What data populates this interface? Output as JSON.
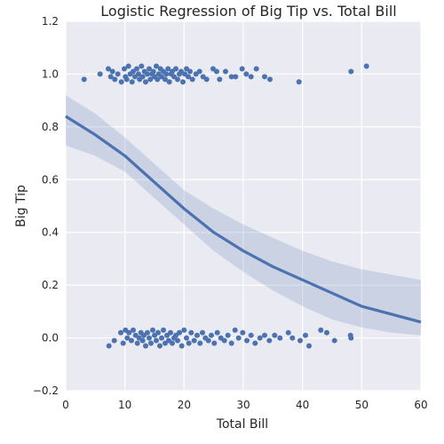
{
  "chart_data": {
    "type": "scatter",
    "title": "Logistic Regression of Big Tip vs. Total Bill",
    "xlabel": "Total Bill",
    "ylabel": "Big Tip",
    "xlim": [
      0,
      60
    ],
    "ylim": [
      -0.2,
      1.2
    ],
    "xticks": [
      0,
      10,
      20,
      30,
      40,
      50,
      60
    ],
    "yticks": [
      -0.2,
      0.0,
      0.2,
      0.4,
      0.6,
      0.8,
      1.0,
      1.2
    ],
    "ytick_labels": [
      "−0.2",
      "0.0",
      "0.2",
      "0.4",
      "0.6",
      "0.8",
      "1.0",
      "1.2"
    ],
    "grid": true,
    "background": "#eaeaf2",
    "point_color": "#4c72b0",
    "line_color": "#4c72b0",
    "band_color": "#4c72b0",
    "series": [
      {
        "kind": "points",
        "points": [
          [
            3.1,
            0.98
          ],
          [
            5.8,
            1.0
          ],
          [
            7.2,
            1.02
          ],
          [
            7.6,
            0.99
          ],
          [
            7.9,
            1.01
          ],
          [
            8.3,
            0.98
          ],
          [
            8.8,
            1.0
          ],
          [
            9.4,
            0.97
          ],
          [
            9.9,
            1.02
          ],
          [
            10.1,
            0.99
          ],
          [
            10.3,
            0.98
          ],
          [
            10.6,
            1.03
          ],
          [
            10.9,
            1.0
          ],
          [
            11.2,
            0.97
          ],
          [
            11.4,
            1.01
          ],
          [
            11.7,
            0.99
          ],
          [
            12.0,
            1.02
          ],
          [
            12.3,
            1.0
          ],
          [
            12.5,
            0.98
          ],
          [
            12.8,
            1.03
          ],
          [
            13.0,
            0.99
          ],
          [
            13.3,
            1.01
          ],
          [
            13.5,
            0.97
          ],
          [
            13.8,
            1.0
          ],
          [
            14.1,
            1.02
          ],
          [
            14.3,
            0.98
          ],
          [
            14.6,
            1.0
          ],
          [
            14.8,
            1.01
          ],
          [
            15.0,
            0.99
          ],
          [
            15.3,
            1.03
          ],
          [
            15.5,
            0.98
          ],
          [
            15.7,
            1.0
          ],
          [
            16.0,
            1.02
          ],
          [
            16.2,
            0.99
          ],
          [
            16.5,
            1.01
          ],
          [
            16.8,
            0.98
          ],
          [
            17.0,
            1.0
          ],
          [
            17.3,
            1.02
          ],
          [
            17.5,
            0.97
          ],
          [
            17.8,
            1.0
          ],
          [
            18.0,
            1.01
          ],
          [
            18.3,
            0.99
          ],
          [
            18.6,
            1.02
          ],
          [
            18.9,
            0.98
          ],
          [
            19.2,
            1.0
          ],
          [
            19.5,
            1.01
          ],
          [
            19.8,
            0.97
          ],
          [
            20.1,
            1.0
          ],
          [
            20.4,
            1.02
          ],
          [
            20.7,
            0.99
          ],
          [
            21.0,
            1.01
          ],
          [
            21.4,
            0.98
          ],
          [
            22.0,
            1.0
          ],
          [
            22.6,
            1.01
          ],
          [
            23.2,
            0.99
          ],
          [
            23.8,
            0.98
          ],
          [
            24.9,
            1.02
          ],
          [
            25.5,
            1.01
          ],
          [
            26.0,
            0.98
          ],
          [
            27.0,
            1.01
          ],
          [
            28.0,
            0.99
          ],
          [
            28.7,
            0.99
          ],
          [
            29.8,
            1.02
          ],
          [
            30.5,
            1.0
          ],
          [
            31.3,
            0.99
          ],
          [
            32.2,
            1.02
          ],
          [
            33.6,
            0.99
          ],
          [
            34.5,
            0.98
          ],
          [
            39.4,
            0.97
          ],
          [
            48.2,
            1.01
          ],
          [
            50.8,
            1.03
          ],
          [
            7.3,
            -0.03
          ],
          [
            8.2,
            -0.01
          ],
          [
            9.3,
            0.02
          ],
          [
            9.7,
            -0.02
          ],
          [
            10.1,
            0.03
          ],
          [
            10.4,
            0.0
          ],
          [
            10.7,
            0.02
          ],
          [
            11.1,
            -0.01
          ],
          [
            11.4,
            0.03
          ],
          [
            11.8,
            0.01
          ],
          [
            12.1,
            -0.02
          ],
          [
            12.4,
            0.0
          ],
          [
            12.7,
            0.02
          ],
          [
            13.0,
            -0.01
          ],
          [
            13.2,
            0.01
          ],
          [
            13.5,
            -0.03
          ],
          [
            13.8,
            0.02
          ],
          [
            14.1,
            0.0
          ],
          [
            14.4,
            -0.02
          ],
          [
            14.7,
            0.03
          ],
          [
            15.0,
            0.01
          ],
          [
            15.3,
            -0.01
          ],
          [
            15.6,
            0.02
          ],
          [
            15.9,
            -0.03
          ],
          [
            16.2,
            0.0
          ],
          [
            16.5,
            0.03
          ],
          [
            16.8,
            -0.02
          ],
          [
            17.1,
            0.01
          ],
          [
            17.4,
            -0.01
          ],
          [
            17.7,
            0.02
          ],
          [
            18.0,
            -0.02
          ],
          [
            18.3,
            0.0
          ],
          [
            18.6,
            0.01
          ],
          [
            18.9,
            -0.01
          ],
          [
            19.2,
            0.02
          ],
          [
            19.6,
            -0.03
          ],
          [
            20.0,
            0.03
          ],
          [
            20.4,
            0.0
          ],
          [
            20.8,
            -0.02
          ],
          [
            21.2,
            0.02
          ],
          [
            21.7,
            -0.01
          ],
          [
            22.2,
            0.01
          ],
          [
            22.7,
            -0.02
          ],
          [
            23.1,
            0.02
          ],
          [
            23.6,
            0.0
          ],
          [
            24.1,
            -0.01
          ],
          [
            24.6,
            0.01
          ],
          [
            25.1,
            -0.02
          ],
          [
            25.6,
            0.02
          ],
          [
            26.2,
            0.0
          ],
          [
            26.8,
            -0.01
          ],
          [
            27.4,
            0.01
          ],
          [
            28.0,
            -0.02
          ],
          [
            28.6,
            0.03
          ],
          [
            29.2,
            0.0
          ],
          [
            29.9,
            0.02
          ],
          [
            30.6,
            -0.01
          ],
          [
            31.3,
            0.01
          ],
          [
            32.0,
            -0.02
          ],
          [
            32.8,
            0.0
          ],
          [
            33.6,
            0.01
          ],
          [
            34.4,
            -0.01
          ],
          [
            35.3,
            0.01
          ],
          [
            36.2,
            0.0
          ],
          [
            37.6,
            0.02
          ],
          [
            38.3,
            0.0
          ],
          [
            39.6,
            -0.01
          ],
          [
            40.5,
            0.01
          ],
          [
            41.1,
            -0.03
          ],
          [
            43.1,
            0.03
          ],
          [
            44.1,
            0.02
          ],
          [
            45.4,
            -0.01
          ],
          [
            48.1,
            0.01
          ],
          [
            48.2,
            0.0
          ]
        ]
      },
      {
        "kind": "fit",
        "name": "",
        "x": [
          0,
          5,
          10,
          15,
          20,
          25,
          30,
          35,
          40,
          45,
          50,
          55,
          60
        ],
        "y": [
          0.84,
          0.77,
          0.69,
          0.59,
          0.49,
          0.4,
          0.33,
          0.27,
          0.22,
          0.17,
          0.12,
          0.09,
          0.06
        ],
        "lower": [
          0.73,
          0.69,
          0.63,
          0.53,
          0.43,
          0.33,
          0.25,
          0.18,
          0.12,
          0.07,
          0.04,
          0.02,
          0.01
        ],
        "upper": [
          0.92,
          0.85,
          0.76,
          0.66,
          0.56,
          0.49,
          0.43,
          0.38,
          0.33,
          0.29,
          0.26,
          0.24,
          0.22
        ]
      }
    ]
  }
}
